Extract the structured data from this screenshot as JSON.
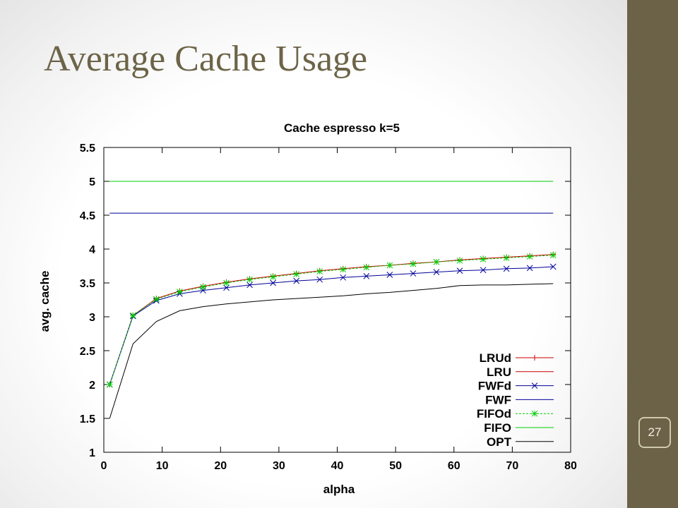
{
  "slide": {
    "title": "Average Cache Usage",
    "page_number": "27",
    "colors": {
      "title": "#6d6448",
      "band": "#6b6248"
    }
  },
  "chart_data": {
    "type": "line",
    "title": "Cache espresso k=5",
    "xlabel": "alpha",
    "ylabel": "avg. cache",
    "xlim": [
      0,
      80
    ],
    "ylim": [
      1,
      5.5
    ],
    "xticks": [
      "0",
      "10",
      "20",
      "30",
      "40",
      "50",
      "60",
      "70",
      "80"
    ],
    "yticks": [
      "1",
      "1.5",
      "2",
      "2.5",
      "3",
      "3.5",
      "4",
      "4.5",
      "5",
      "5.5"
    ],
    "legend_position": "bottom-right",
    "grid": false,
    "series": [
      {
        "name": "LRUd",
        "color": "#cc0000",
        "marker": "plus",
        "dash": false,
        "x": [
          1,
          5,
          9,
          13,
          17,
          21,
          25,
          29,
          33,
          37,
          41,
          45,
          49,
          53,
          57,
          61,
          65,
          69,
          73,
          77
        ],
        "y": [
          2,
          3.02,
          3.27,
          3.38,
          3.45,
          3.51,
          3.56,
          3.6,
          3.64,
          3.68,
          3.71,
          3.74,
          3.76,
          3.79,
          3.81,
          3.84,
          3.86,
          3.88,
          3.9,
          3.92
        ]
      },
      {
        "name": "LRU",
        "color": "#cc0000",
        "marker": "none",
        "dash": false,
        "x": [
          77
        ],
        "y": [
          3.92
        ]
      },
      {
        "name": "FWFd",
        "color": "#000099",
        "marker": "cross",
        "dash": false,
        "x": [
          1,
          5,
          9,
          13,
          17,
          21,
          25,
          29,
          33,
          37,
          41,
          45,
          49,
          53,
          57,
          61,
          65,
          69,
          73,
          77
        ],
        "y": [
          2,
          3.01,
          3.24,
          3.34,
          3.39,
          3.43,
          3.47,
          3.5,
          3.53,
          3.55,
          3.58,
          3.6,
          3.62,
          3.64,
          3.66,
          3.68,
          3.69,
          3.71,
          3.72,
          3.74
        ]
      },
      {
        "name": "FWF",
        "color": "#000099",
        "marker": "none",
        "dash": false,
        "x": [
          1,
          77
        ],
        "y": [
          4.53,
          4.53
        ]
      },
      {
        "name": "FIFOd",
        "color": "#00cc00",
        "marker": "star",
        "dash": true,
        "x": [
          1,
          5,
          9,
          13,
          17,
          21,
          25,
          29,
          33,
          37,
          41,
          45,
          49,
          53,
          57,
          61,
          65,
          69,
          73,
          77
        ],
        "y": [
          2,
          3.02,
          3.26,
          3.37,
          3.44,
          3.5,
          3.55,
          3.59,
          3.63,
          3.67,
          3.7,
          3.73,
          3.76,
          3.78,
          3.81,
          3.83,
          3.85,
          3.87,
          3.89,
          3.91
        ]
      },
      {
        "name": "FIFO",
        "color": "#00cc00",
        "marker": "none",
        "dash": false,
        "x": [
          1,
          77
        ],
        "y": [
          5,
          5
        ]
      },
      {
        "name": "OPT",
        "color": "#000000",
        "marker": "none",
        "dash": false,
        "x": [
          1,
          5,
          9,
          13,
          17,
          21,
          25,
          29,
          33,
          37,
          41,
          45,
          49,
          53,
          57,
          61,
          65,
          69,
          73,
          77
        ],
        "y": [
          1.5,
          2.6,
          2.93,
          3.09,
          3.15,
          3.19,
          3.22,
          3.25,
          3.27,
          3.29,
          3.31,
          3.34,
          3.36,
          3.39,
          3.42,
          3.46,
          3.47,
          3.47,
          3.48,
          3.49
        ]
      }
    ]
  }
}
